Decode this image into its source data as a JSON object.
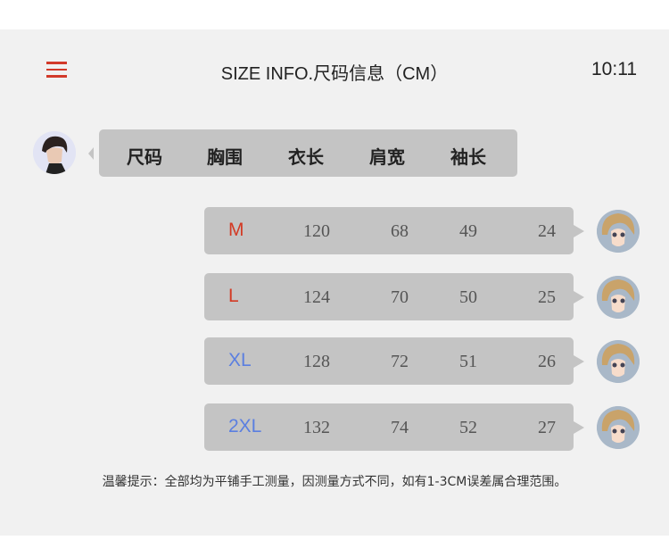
{
  "header": {
    "title": "SIZE INFO.尺码信息（CM）",
    "time": "10:11",
    "menu_icon": "hamburger-icon"
  },
  "columns": [
    "尺码",
    "胸围",
    "衣长",
    "肩宽",
    "袖长"
  ],
  "rows": [
    {
      "size": "M",
      "color": "#d33a24",
      "values": [
        "120",
        "68",
        "49",
        "24"
      ]
    },
    {
      "size": "L",
      "color": "#d33a24",
      "values": [
        "124",
        "70",
        "50",
        "25"
      ]
    },
    {
      "size": "XL",
      "color": "#5b7fe0",
      "values": [
        "128",
        "72",
        "51",
        "26"
      ]
    },
    {
      "size": "2XL",
      "color": "#5b7fe0",
      "values": [
        "132",
        "74",
        "52",
        "27"
      ]
    }
  ],
  "note": "温馨提示：全部均为平铺手工测量，因测量方式不同，如有1-3CM误差属合理范围。",
  "colors": {
    "bubble": "#c4c4c4",
    "background": "#f1f1f1",
    "accent": "#d23a2a"
  }
}
